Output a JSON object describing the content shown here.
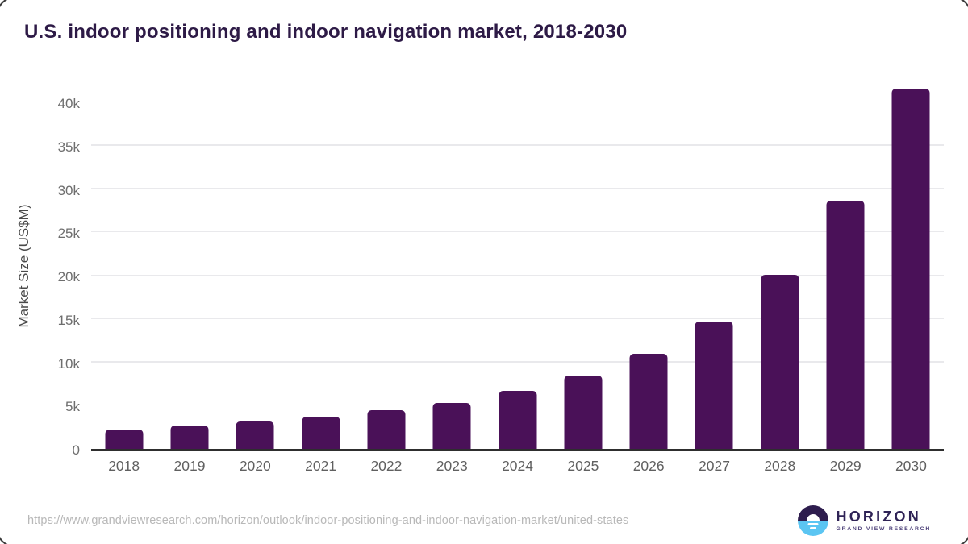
{
  "header": {
    "title": "U.S. indoor positioning and indoor navigation market, 2018-2030"
  },
  "chart_data": {
    "type": "bar",
    "title": "U.S. indoor positioning and indoor navigation market, 2018-2030",
    "categories": [
      "2018",
      "2019",
      "2020",
      "2021",
      "2022",
      "2023",
      "2024",
      "2025",
      "2026",
      "2027",
      "2028",
      "2029",
      "2030"
    ],
    "values": [
      2200,
      2700,
      3150,
      3700,
      4450,
      5350,
      6700,
      8500,
      11000,
      14750,
      20150,
      28700,
      41600
    ],
    "xlabel": "",
    "ylabel": "Market Size (US$M)",
    "yticks": [
      {
        "value": 0,
        "label": "0"
      },
      {
        "value": 5000,
        "label": "5k"
      },
      {
        "value": 10000,
        "label": "10k"
      },
      {
        "value": 15000,
        "label": "15k"
      },
      {
        "value": 20000,
        "label": "20k"
      },
      {
        "value": 25000,
        "label": "25k"
      },
      {
        "value": 30000,
        "label": "30k"
      },
      {
        "value": 35000,
        "label": "35k"
      },
      {
        "value": 40000,
        "label": "40k"
      }
    ],
    "ylim": [
      0,
      42720
    ],
    "grid": true,
    "legend_position": "none",
    "bar_color": "#4a1158"
  },
  "footer": {
    "source_url": "https://www.grandviewresearch.com/horizon/outlook/indoor-positioning-and-indoor-navigation-market/united-states",
    "logo_title": "HORIZON",
    "logo_subtitle": "GRAND VIEW RESEARCH"
  },
  "colors": {
    "bar": "#4a1158",
    "title_text": "#2d1a46",
    "axis_text": "#6e6e6e",
    "gridline": "#e9e9ec",
    "logo_dark": "#2e1d4e",
    "logo_blue": "#5bc5f2"
  }
}
